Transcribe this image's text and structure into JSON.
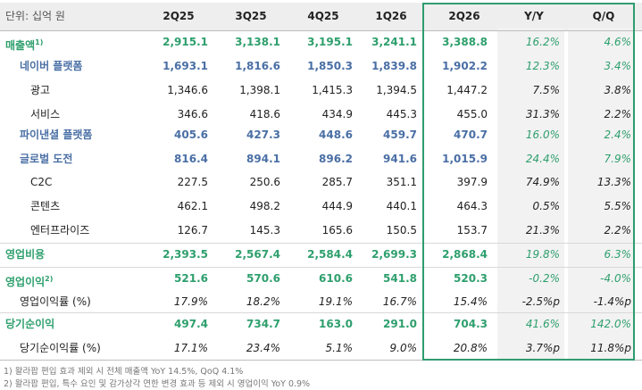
{
  "header": {
    "unit": "단위: 십억 원",
    "columns": [
      "2Q25",
      "3Q25",
      "4Q25",
      "1Q26",
      "2Q26",
      "Y/Y",
      "Q/Q"
    ]
  },
  "rows": [
    {
      "label": "매출액",
      "sup": "1)",
      "values": [
        "2,915.1",
        "3,138.1",
        "3,195.1",
        "3,241.1",
        "3,388.8",
        "16.2%",
        "4.6%"
      ]
    },
    {
      "label": "네이버 플랫폼",
      "values": [
        "1,693.1",
        "1,816.6",
        "1,850.3",
        "1,839.8",
        "1,902.2",
        "12.3%",
        "3.4%"
      ]
    },
    {
      "label": "광고",
      "values": [
        "1,346.6",
        "1,398.1",
        "1,415.3",
        "1,394.5",
        "1,447.2",
        "7.5%",
        "3.8%"
      ]
    },
    {
      "label": "서비스",
      "values": [
        "346.6",
        "418.6",
        "434.9",
        "445.3",
        "455.0",
        "31.3%",
        "2.2%"
      ]
    },
    {
      "label": "파이낸셜 플랫폼",
      "values": [
        "405.6",
        "427.3",
        "448.6",
        "459.7",
        "470.7",
        "16.0%",
        "2.4%"
      ]
    },
    {
      "label": "글로벌 도전",
      "values": [
        "816.4",
        "894.1",
        "896.2",
        "941.6",
        "1,015.9",
        "24.4%",
        "7.9%"
      ]
    },
    {
      "label": "C2C",
      "values": [
        "227.5",
        "250.6",
        "285.7",
        "351.1",
        "397.9",
        "74.9%",
        "13.3%"
      ]
    },
    {
      "label": "콘텐츠",
      "values": [
        "462.1",
        "498.2",
        "444.9",
        "440.1",
        "464.3",
        "0.5%",
        "5.5%"
      ]
    },
    {
      "label": "엔터프라이즈",
      "values": [
        "126.7",
        "145.3",
        "165.6",
        "150.5",
        "153.7",
        "21.3%",
        "2.2%"
      ]
    },
    {
      "label": "영업비용",
      "values": [
        "2,393.5",
        "2,567.4",
        "2,584.4",
        "2,699.3",
        "2,868.4",
        "19.8%",
        "6.3%"
      ]
    },
    {
      "label": "영업이익",
      "sup": "2)",
      "values": [
        "521.6",
        "570.6",
        "610.6",
        "541.8",
        "520.3",
        "-0.2%",
        "-4.0%"
      ]
    },
    {
      "label": "영업이익률 (%)",
      "values": [
        "17.9%",
        "18.2%",
        "19.1%",
        "16.7%",
        "15.4%",
        "-2.5%p",
        "-1.4%p"
      ]
    },
    {
      "label": "당기순이익",
      "values": [
        "497.4",
        "734.7",
        "163.0",
        "291.0",
        "704.3",
        "41.6%",
        "142.0%"
      ]
    },
    {
      "label": "당기순이익률 (%)",
      "values": [
        "17.1%",
        "23.4%",
        "5.1%",
        "9.0%",
        "20.8%",
        "3.7%p",
        "11.8%p"
      ]
    }
  ],
  "footnotes": [
    "1) 왈라팝 편입 효과 제외 시 전체 매출액 YoY 14.5%, QoQ 4.1%",
    "2) 왈라팝 편입, 특수 요인 및 감가상각 연한 변경 효과 등 제외 시 영업이익 YoY 0.9%"
  ],
  "colors": {
    "accent_green": "#2e9f6d",
    "segment_blue": "#4a6fa5",
    "frame_green": "#2f9c6f"
  }
}
